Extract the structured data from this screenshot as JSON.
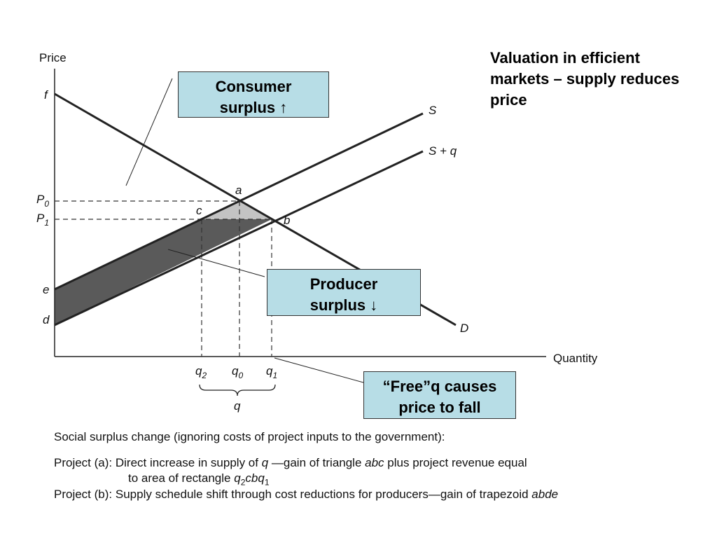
{
  "title": "Valuation in efficient markets – supply reduces price",
  "axes": {
    "y_label": "Price",
    "x_label": "Quantity"
  },
  "curve_labels": {
    "supply": "S",
    "supply_shifted": "S + q",
    "demand": "D"
  },
  "point_labels": {
    "f": "f",
    "e": "e",
    "d": "d",
    "a": "a",
    "b": "b",
    "c": "c"
  },
  "price_ticks": {
    "p0": {
      "base": "P",
      "sub": "0"
    },
    "p1": {
      "base": "P",
      "sub": "1"
    }
  },
  "quantity_ticks": {
    "q2": {
      "base": "q",
      "sub": "2"
    },
    "q0": {
      "base": "q",
      "sub": "0"
    },
    "q1": {
      "base": "q",
      "sub": "1"
    }
  },
  "brace_label": "q",
  "callouts": {
    "consumer": {
      "line1": "Consumer",
      "line2": "surplus ↑"
    },
    "producer": {
      "line1": "Producer",
      "line2": "surplus ↓"
    },
    "free": {
      "line1": "“Free”q causes",
      "line2": "price to fall"
    }
  },
  "colors": {
    "callout_fill": "#b7dde6",
    "triangle_abc": "#c3c3c3",
    "trapezoid_abde": "#5a5a5a",
    "lines": "#222222"
  },
  "caption": {
    "intro": "Social surplus change (ignoring costs of project inputs to the government):",
    "a_label": "Project (a):",
    "a_text1": "Direct increase in supply of ",
    "a_q": "q",
    "a_text2": " —gain of triangle ",
    "a_abc": "abc",
    "a_text3": " plus project revenue equal",
    "a_line2_text": "to area of rectangle ",
    "a_rect": {
      "q2": "q",
      "q2_sub": "2",
      "mid": "cb",
      "q1": "q",
      "q1_sub": "1"
    },
    "b_label": "Project (b):",
    "b_text": "Supply schedule shift through cost reductions for producers—gain of trapezoid ",
    "b_abde": "abde"
  }
}
